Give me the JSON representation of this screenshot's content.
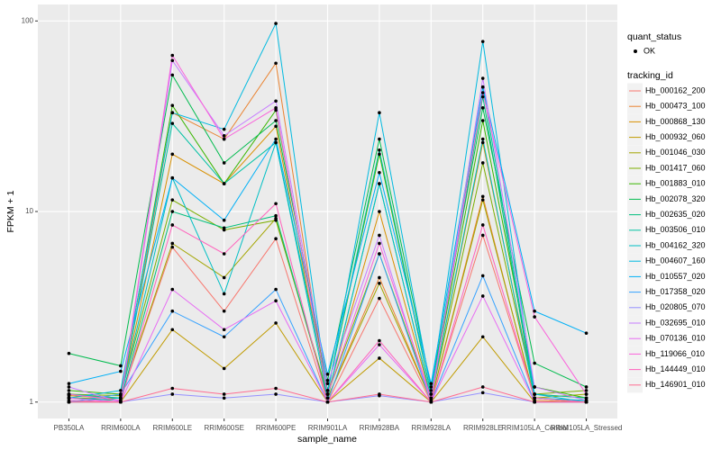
{
  "chart_data": {
    "type": "line",
    "x_label": "sample_name",
    "y_label": "FPKM + 1",
    "log_scale": true,
    "grid": true,
    "background": "#EBEBEB",
    "ylim": [
      0.82,
      122
    ],
    "yticks": [
      1,
      10,
      100
    ],
    "shape_legend": {
      "title": "quant_status",
      "labels": [
        "OK"
      ]
    },
    "legend_title": "tracking_id",
    "categories": [
      "PB350LA",
      "RRIM600LA",
      "RRIM600LE",
      "RRIM600SE",
      "RRIM600PE",
      "RRIM901LA",
      "RRIM928BA",
      "RRIM928LA",
      "RRIM928LE",
      "RRIM105LA_Control",
      "RRIM105LA_Stressed"
    ],
    "series": [
      {
        "name": "Hb_000162_200",
        "color": "#F8766D",
        "values": [
          1.1,
          1.05,
          6.5,
          3.0,
          7.2,
          1.0,
          3.5,
          1.0,
          7.5,
          1.05,
          1.0
        ]
      },
      {
        "name": "Hb_000473_100",
        "color": "#EA8331",
        "values": [
          1.05,
          1.02,
          33,
          24,
          60,
          1.05,
          4.5,
          1.02,
          12,
          1.02,
          1.0
        ]
      },
      {
        "name": "Hb_000868_130",
        "color": "#D89000",
        "values": [
          1.08,
          1.05,
          20,
          14,
          28,
          1.1,
          10,
          1.05,
          23,
          1.1,
          1.05
        ]
      },
      {
        "name": "Hb_000932_060",
        "color": "#C09B00",
        "values": [
          1.0,
          1.0,
          2.4,
          1.5,
          2.6,
          1.0,
          1.7,
          1.0,
          2.2,
          1.0,
          1.0
        ]
      },
      {
        "name": "Hb_001046_030",
        "color": "#A3A500",
        "values": [
          1.05,
          1.05,
          6.8,
          4.5,
          9.2,
          1.05,
          4.2,
          1.02,
          11.5,
          1.05,
          1.1
        ]
      },
      {
        "name": "Hb_001417_060",
        "color": "#7CAE00",
        "values": [
          1.1,
          1.08,
          11.5,
          8.0,
          9.0,
          1.1,
          6.0,
          1.05,
          18,
          1.1,
          1.15
        ]
      },
      {
        "name": "Hb_001883_010",
        "color": "#39B600",
        "values": [
          1.15,
          1.1,
          36,
          14,
          34,
          1.15,
          20,
          1.1,
          30,
          1.2,
          1.05
        ]
      },
      {
        "name": "Hb_002078_320",
        "color": "#00BB4E",
        "values": [
          1.8,
          1.55,
          52,
          18,
          30,
          1.3,
          24,
          1.2,
          35,
          1.6,
          1.2
        ]
      },
      {
        "name": "Hb_002635_020",
        "color": "#00BF7D",
        "values": [
          1.05,
          1.02,
          10,
          8.2,
          9.5,
          1.05,
          14,
          1.05,
          40,
          1.05,
          1.0
        ]
      },
      {
        "name": "Hb_003506_010",
        "color": "#00C1A3",
        "values": [
          1.1,
          1.05,
          29,
          14,
          23,
          1.15,
          21,
          1.1,
          45,
          1.1,
          1.05
        ]
      },
      {
        "name": "Hb_004162_320",
        "color": "#00BFC4",
        "values": [
          1.0,
          1.05,
          15,
          3.7,
          23,
          1.05,
          14,
          1.05,
          24,
          1.05,
          1.02
        ]
      },
      {
        "name": "Hb_004607_160",
        "color": "#00BAE0",
        "values": [
          1.05,
          1.15,
          33,
          27,
          97,
          1.1,
          33,
          1.15,
          78,
          1.1,
          1.0
        ]
      },
      {
        "name": "Hb_010557_020",
        "color": "#00B0F6",
        "values": [
          1.25,
          1.45,
          15,
          9.0,
          24,
          1.4,
          16,
          1.25,
          45,
          3.0,
          2.3
        ]
      },
      {
        "name": "Hb_017358_020",
        "color": "#35A2FF",
        "values": [
          1.0,
          1.1,
          3.0,
          2.2,
          3.9,
          1.0,
          6.0,
          1.0,
          4.6,
          1.0,
          1.0
        ]
      },
      {
        "name": "Hb_020805_070",
        "color": "#9590FF",
        "values": [
          1.0,
          1.0,
          1.1,
          1.05,
          1.1,
          1.0,
          1.08,
          1.0,
          1.12,
          1.0,
          1.0
        ]
      },
      {
        "name": "Hb_032695_010",
        "color": "#C77CFF",
        "values": [
          1.2,
          1.0,
          62,
          25,
          38,
          1.25,
          7.5,
          1.0,
          50,
          1.2,
          1.02
        ]
      },
      {
        "name": "Hb_070136_010",
        "color": "#E76BF3",
        "values": [
          1.05,
          1.0,
          3.9,
          2.4,
          3.4,
          1.0,
          2.0,
          1.0,
          3.6,
          1.0,
          1.0
        ]
      },
      {
        "name": "Hb_119066_010",
        "color": "#FA62DB",
        "values": [
          1.1,
          1.02,
          66,
          24,
          35,
          1.1,
          6.8,
          1.05,
          42,
          2.8,
          1.1
        ]
      },
      {
        "name": "Hb_144449_010",
        "color": "#FF62BC",
        "values": [
          1.02,
          1.0,
          8.5,
          6.0,
          11,
          1.0,
          2.1,
          1.0,
          8.5,
          1.05,
          1.0
        ]
      },
      {
        "name": "Hb_146901_010",
        "color": "#FF6C91",
        "values": [
          1.0,
          1.0,
          1.18,
          1.1,
          1.18,
          1.0,
          1.1,
          1.0,
          1.2,
          1.0,
          1.0
        ]
      }
    ]
  }
}
